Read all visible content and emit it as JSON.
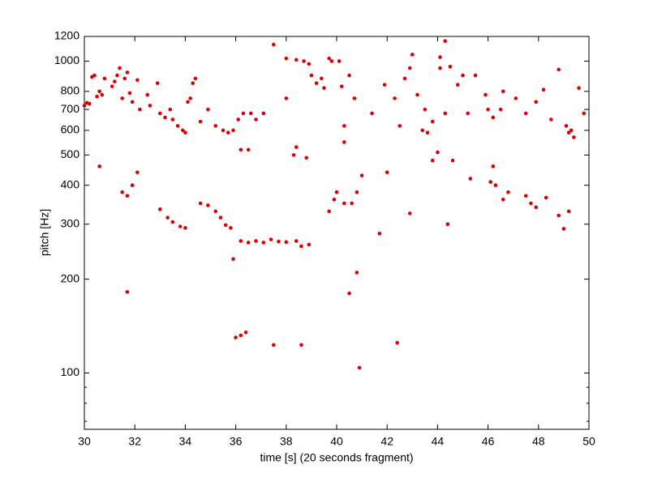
{
  "chart_data": {
    "type": "scatter",
    "x_label": "time [s] (20 seconds fragment)",
    "y_label": "pitch [Hz]",
    "xlim": [
      30,
      50
    ],
    "ylim": [
      66,
      1200
    ],
    "yscale": "log",
    "xticks": [
      30,
      32,
      34,
      36,
      38,
      40,
      42,
      44,
      46,
      48,
      50
    ],
    "yticks": [
      100,
      200,
      300,
      400,
      500,
      600,
      700,
      800,
      1000,
      1200
    ],
    "yminor_ticks": [
      70,
      80,
      90
    ],
    "grid": false,
    "series": [
      {
        "color": "#dd0000",
        "x": [
          30.0,
          30.1,
          30.2,
          30.3,
          30.4,
          30.5,
          30.6,
          30.7,
          30.8,
          31.1,
          31.2,
          31.3,
          31.4,
          31.5,
          31.6,
          31.7,
          31.8,
          31.9,
          32.1,
          32.2,
          32.5,
          32.6,
          32.9,
          33.0,
          33.2,
          33.4,
          33.5,
          33.7,
          33.9,
          34.0,
          34.1,
          34.2,
          34.3,
          34.4,
          34.6,
          34.9,
          35.2,
          35.5,
          35.7,
          35.9,
          36.1,
          36.3,
          36.6,
          36.8,
          37.1,
          36.2,
          36.5,
          30.6,
          31.5,
          31.7,
          31.9,
          32.1,
          33.0,
          33.3,
          33.5,
          33.8,
          34.0,
          34.6,
          34.9,
          35.2,
          35.4,
          35.6,
          35.8,
          35.9,
          36.2,
          36.5,
          36.8,
          37.1,
          37.4,
          37.7,
          38.0,
          38.4,
          38.6,
          38.9,
          31.7,
          36.0,
          36.2,
          36.4,
          37.5,
          38.6,
          37.5,
          38.0,
          38.0,
          38.4,
          38.7,
          38.9,
          39.0,
          39.2,
          39.4,
          39.5,
          39.7,
          39.8,
          40.1,
          40.2,
          40.3,
          40.3,
          40.5,
          40.7,
          38.3,
          38.4,
          38.8,
          39.7,
          39.9,
          40.0,
          40.3,
          40.6,
          40.8,
          41.0,
          41.7,
          40.8,
          40.5,
          40.9,
          41.4,
          41.9,
          42.0,
          42.3,
          42.5,
          42.7,
          42.9,
          43.0,
          42.4,
          42.9,
          43.2,
          43.4,
          43.6,
          43.5,
          43.8,
          43.8,
          44.0,
          44.1,
          44.1,
          44.3,
          44.3,
          44.5,
          44.8,
          44.4,
          44.6,
          45.0,
          45.2,
          45.5,
          45.3,
          45.9,
          46.0,
          46.1,
          46.2,
          46.3,
          46.6,
          46.8,
          46.2,
          46.5,
          46.6,
          47.1,
          47.5,
          47.7,
          47.9,
          47.5,
          47.9,
          48.2,
          48.3,
          48.5,
          48.8,
          49.0,
          49.1,
          48.8,
          49.2,
          49.2,
          49.4,
          49.6,
          49.8,
          49.3
        ],
        "values": [
          720,
          735,
          730,
          890,
          900,
          770,
          800,
          780,
          880,
          830,
          860,
          900,
          950,
          760,
          880,
          920,
          790,
          740,
          870,
          700,
          780,
          720,
          850,
          680,
          660,
          700,
          650,
          620,
          600,
          590,
          740,
          760,
          850,
          880,
          640,
          700,
          620,
          600,
          590,
          600,
          650,
          680,
          680,
          650,
          680,
          520,
          520,
          460,
          380,
          370,
          400,
          440,
          335,
          315,
          305,
          295,
          292,
          350,
          345,
          330,
          315,
          298,
          292,
          232,
          265,
          262,
          265,
          262,
          268,
          264,
          263,
          265,
          255,
          258,
          182,
          130,
          132,
          135,
          123,
          123,
          1130,
          1020,
          760,
          1010,
          1000,
          980,
          900,
          850,
          880,
          820,
          1020,
          1000,
          1000,
          830,
          620,
          550,
          900,
          760,
          500,
          530,
          490,
          330,
          360,
          380,
          350,
          350,
          380,
          430,
          280,
          210,
          180,
          104,
          680,
          840,
          440,
          760,
          620,
          880,
          950,
          1050,
          125,
          325,
          780,
          600,
          590,
          700,
          640,
          480,
          510,
          1030,
          950,
          1160,
          680,
          960,
          840,
          300,
          480,
          900,
          680,
          900,
          420,
          780,
          700,
          410,
          460,
          400,
          360,
          380,
          660,
          700,
          800,
          760,
          370,
          350,
          340,
          680,
          740,
          810,
          365,
          650,
          320,
          290,
          620,
          940,
          330,
          590,
          570,
          820,
          680,
          600
        ]
      }
    ]
  }
}
